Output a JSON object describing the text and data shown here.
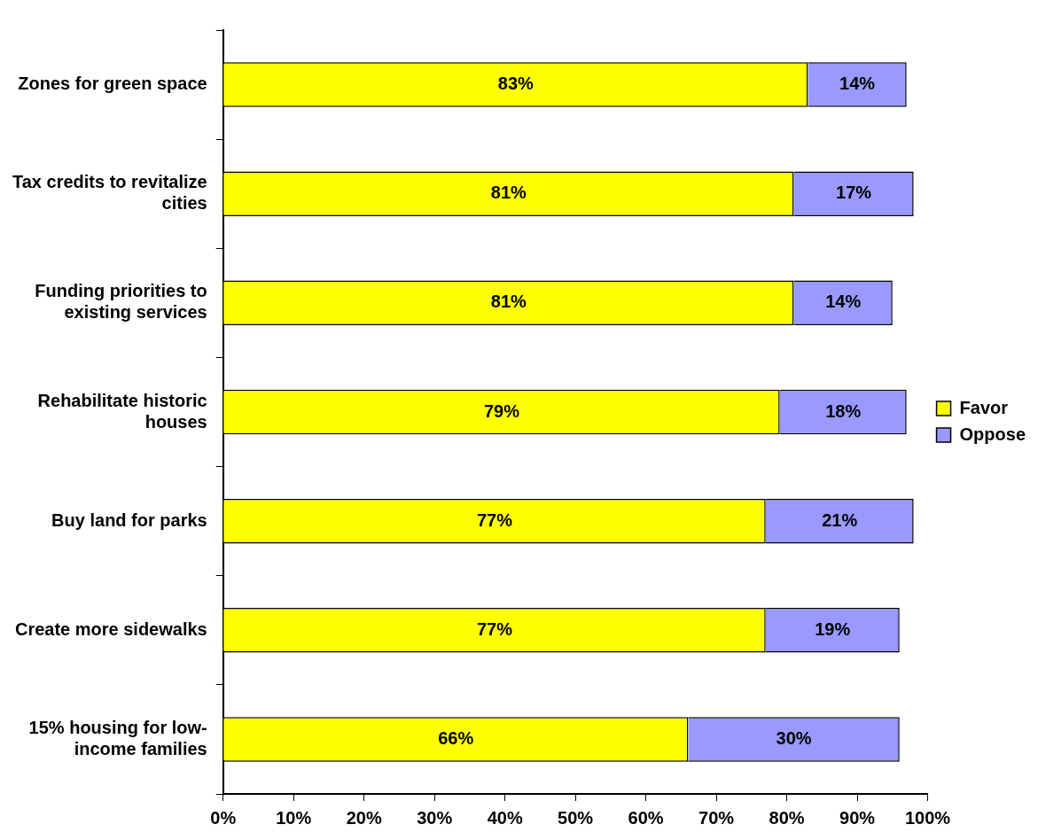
{
  "chart_data": {
    "type": "bar",
    "orientation": "horizontal",
    "stacked": true,
    "legend": "right",
    "categories": [
      "Zones for green space",
      "Tax credits to revitalize cities",
      "Funding priorities to existing services",
      "Rehabilitate historic houses",
      "Buy land for parks",
      "Create more sidewalks",
      "15% housing for low-income families"
    ],
    "series": [
      {
        "name": "Favor",
        "color": "#ffff00",
        "values": [
          83,
          81,
          81,
          79,
          77,
          77,
          66
        ],
        "value_labels": [
          "83%",
          "81%",
          "81%",
          "79%",
          "77%",
          "77%",
          "66%"
        ]
      },
      {
        "name": "Oppose",
        "color": "#9999ff",
        "values": [
          14,
          17,
          14,
          18,
          21,
          19,
          30
        ],
        "value_labels": [
          "14%",
          "17%",
          "14%",
          "18%",
          "21%",
          "19%",
          "30%"
        ]
      }
    ],
    "xlim": [
      0,
      100
    ],
    "xticks": [
      {
        "value": 0,
        "label": "0%"
      },
      {
        "value": 10,
        "label": "10%"
      },
      {
        "value": 20,
        "label": "20%"
      },
      {
        "value": 30,
        "label": "30%"
      },
      {
        "value": 40,
        "label": "40%"
      },
      {
        "value": 50,
        "label": "50%"
      },
      {
        "value": 60,
        "label": "60%"
      },
      {
        "value": 70,
        "label": "70%"
      },
      {
        "value": 80,
        "label": "80%"
      },
      {
        "value": 90,
        "label": "90%"
      },
      {
        "value": 100,
        "label": "100%"
      }
    ]
  }
}
